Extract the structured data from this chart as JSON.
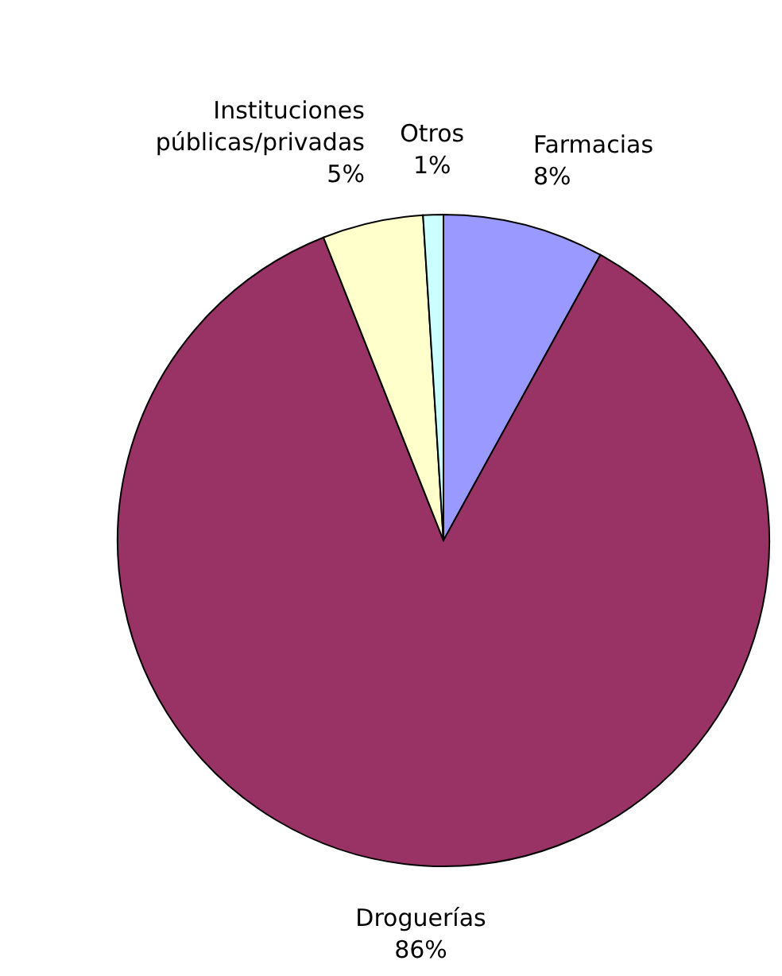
{
  "chart_data": {
    "type": "pie",
    "categories": [
      "Farmacias",
      "Droguerías",
      "Instituciones públicas/privadas",
      "Otros"
    ],
    "values": [
      8,
      86,
      5,
      1
    ],
    "value_labels": [
      "8%",
      "86%",
      "5%",
      "1%"
    ],
    "colors": [
      "#9999ff",
      "#993366",
      "#ffffcc",
      "#ccffff"
    ],
    "legend": false
  }
}
